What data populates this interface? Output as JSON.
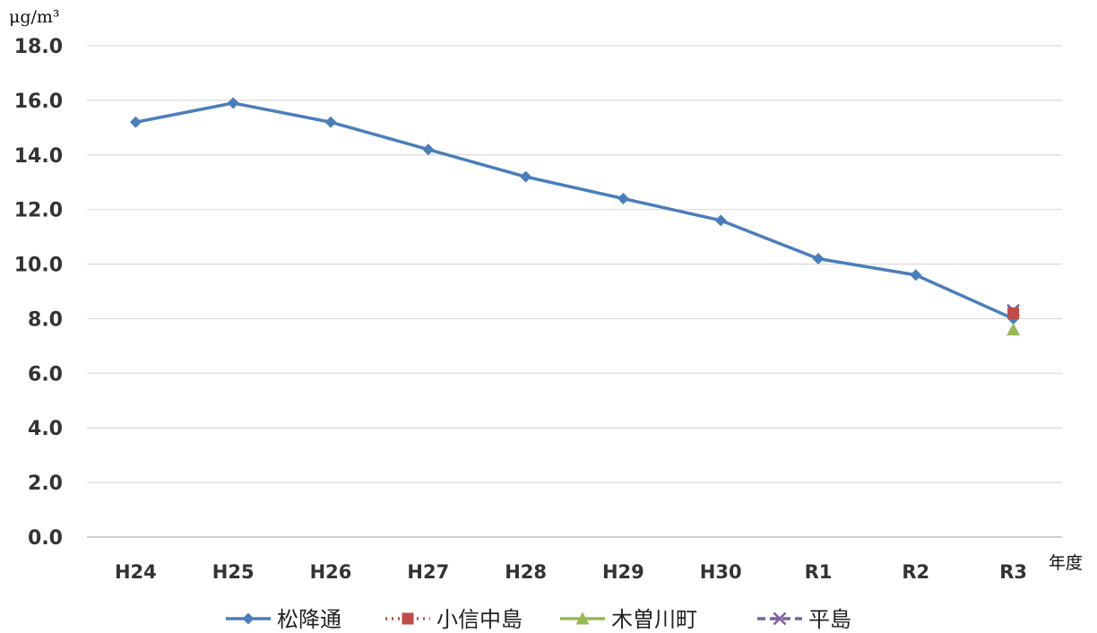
{
  "chart_data": {
    "type": "line",
    "title": "",
    "ylabel": "μg/m³",
    "xlabel": "年度",
    "ylim": [
      0,
      18
    ],
    "y_ticks": [
      "0.0",
      "2.0",
      "4.0",
      "6.0",
      "8.0",
      "10.0",
      "12.0",
      "14.0",
      "16.0",
      "18.0"
    ],
    "categories": [
      "H24",
      "H25",
      "H26",
      "H27",
      "H28",
      "H29",
      "H30",
      "R1",
      "R2",
      "R3"
    ],
    "grid": "horizontal",
    "legend_position": "bottom",
    "series": [
      {
        "name": "松降通",
        "color": "#4a7ebb",
        "marker": "diamond",
        "line": "solid",
        "values": [
          15.2,
          15.9,
          15.2,
          14.2,
          13.2,
          12.4,
          11.6,
          10.2,
          9.6,
          8.0
        ]
      },
      {
        "name": "小信中島",
        "color": "#be4b48",
        "marker": "square",
        "line": "dotted",
        "values": [
          null,
          null,
          null,
          null,
          null,
          null,
          null,
          null,
          null,
          8.2
        ]
      },
      {
        "name": "木曽川町",
        "color": "#98b954",
        "marker": "triangle",
        "line": "solid",
        "values": [
          null,
          null,
          null,
          null,
          null,
          null,
          null,
          null,
          null,
          7.6
        ]
      },
      {
        "name": "平島",
        "color": "#7d60a0",
        "marker": "x",
        "line": "dashed",
        "values": [
          null,
          null,
          null,
          null,
          null,
          null,
          null,
          null,
          null,
          8.3
        ]
      }
    ]
  }
}
